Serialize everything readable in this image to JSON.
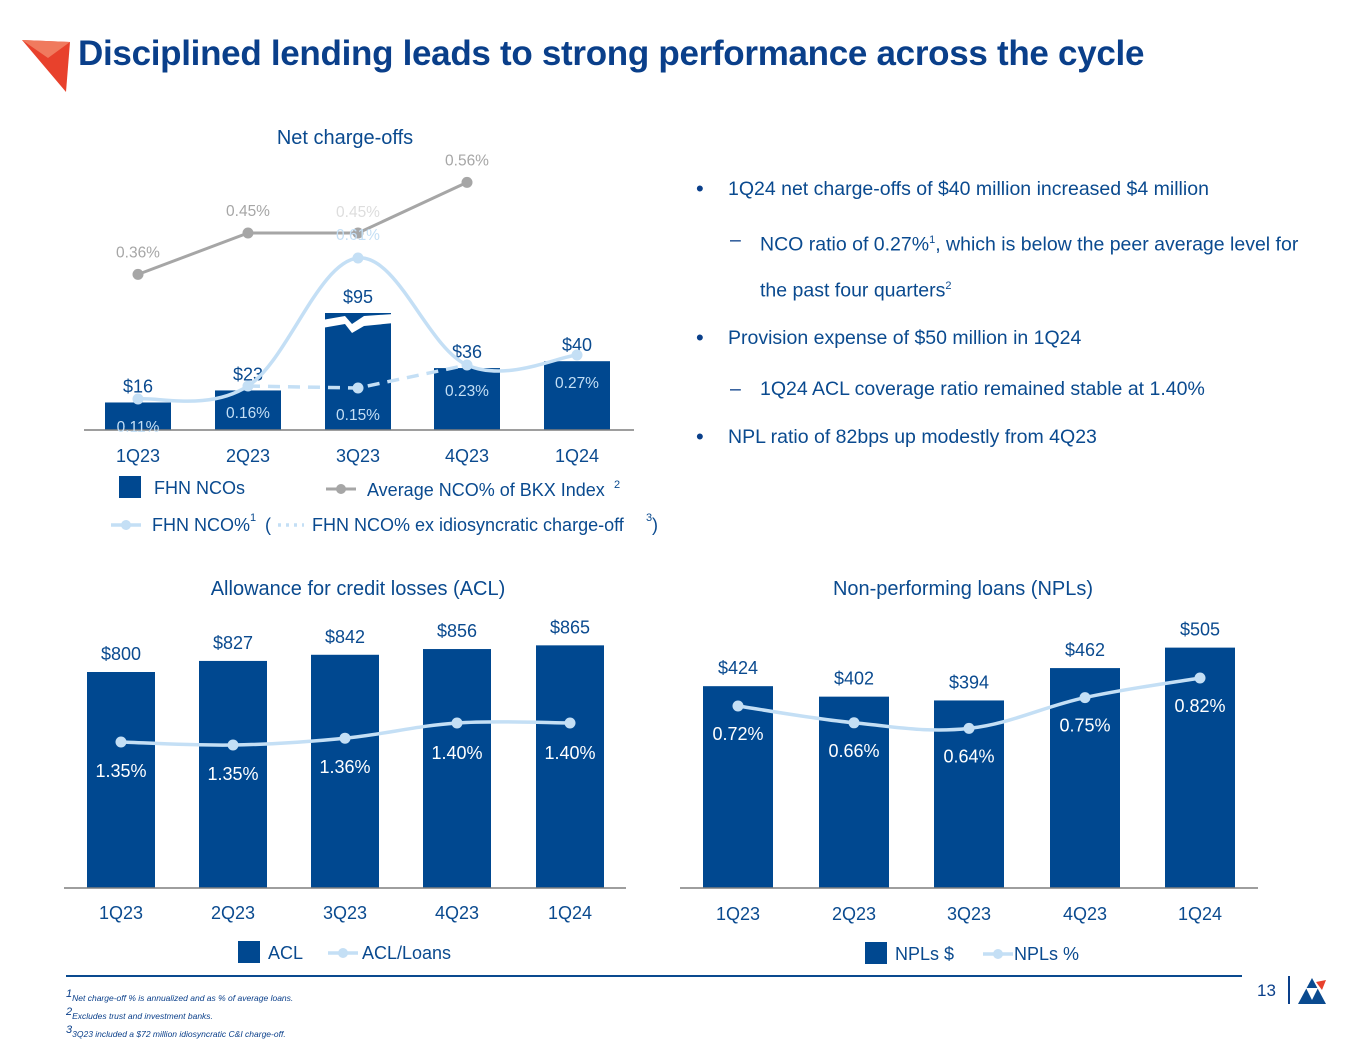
{
  "title": "Disciplined lending leads to strong performance across the cycle",
  "colors": {
    "bar": "#004890",
    "line_light": "#c4dff5",
    "line_gray": "#a6a6a6",
    "text": "#0a4a8f",
    "accent_red": "#e8412c"
  },
  "chart_data": [
    {
      "type": "bar",
      "title": "Net charge-offs",
      "categories": [
        "1Q23",
        "2Q23",
        "3Q23",
        "4Q23",
        "1Q24"
      ],
      "series": [
        {
          "name": "FHN NCOs",
          "values": [
            16,
            23,
            95,
            36,
            40
          ],
          "labels": [
            "$16",
            "$23",
            "$95",
            "$36",
            "$40"
          ]
        },
        {
          "name": "FHN NCO%",
          "values": [
            0.11,
            0.16,
            0.61,
            0.23,
            0.27
          ],
          "labels": [
            "0.11%",
            "0.16%",
            "0.61%",
            "0.23%",
            "0.27%"
          ]
        },
        {
          "name": "FHN NCO% ex idiosyncratic charge-off",
          "values": [
            null,
            0.16,
            0.15,
            0.23,
            null
          ],
          "labels": [
            "",
            "",
            "0.15%",
            "",
            ""
          ]
        },
        {
          "name": "Average NCO% of BKX Index",
          "values": [
            0.36,
            0.45,
            0.45,
            0.56,
            null
          ],
          "labels": [
            "0.36%",
            "0.45%",
            "0.45%",
            "0.56%",
            ""
          ]
        }
      ],
      "legend": {
        "ncos": "FHN NCOs",
        "bkx": "Average NCO% of BKX Index",
        "bkx_sup": "2",
        "nco_pct": "FHN NCO%",
        "nco_pct_sup": "1",
        "paren_open": "(",
        "ex": "FHN NCO% ex idiosyncratic charge-off",
        "ex_sup": "3",
        "paren_close": ")"
      }
    },
    {
      "type": "bar",
      "title": "Allowance for credit losses (ACL)",
      "categories": [
        "1Q23",
        "2Q23",
        "3Q23",
        "4Q23",
        "1Q24"
      ],
      "series": [
        {
          "name": "ACL",
          "values": [
            800,
            827,
            842,
            856,
            865
          ],
          "labels": [
            "$800",
            "$827",
            "$842",
            "$856",
            "$865"
          ]
        },
        {
          "name": "ACL/Loans",
          "values": [
            1.35,
            1.35,
            1.36,
            1.4,
            1.4
          ],
          "labels": [
            "1.35%",
            "1.35%",
            "1.36%",
            "1.40%",
            "1.40%"
          ]
        }
      ],
      "legend": [
        "ACL",
        "ACL/Loans"
      ]
    },
    {
      "type": "bar",
      "title": "Non-performing loans (NPLs)",
      "categories": [
        "1Q23",
        "2Q23",
        "3Q23",
        "4Q23",
        "1Q24"
      ],
      "series": [
        {
          "name": "NPLs $",
          "values": [
            424,
            402,
            394,
            462,
            505
          ],
          "labels": [
            "$424",
            "$402",
            "$394",
            "$462",
            "$505"
          ]
        },
        {
          "name": "NPLs %",
          "values": [
            0.72,
            0.66,
            0.64,
            0.75,
            0.82
          ],
          "labels": [
            "0.72%",
            "0.66%",
            "0.64%",
            "0.75%",
            "0.82%"
          ]
        }
      ],
      "legend": [
        "NPLs $",
        "NPLs %"
      ]
    }
  ],
  "bullets": {
    "b1": "1Q24 net charge-offs of $40 million increased $4 million",
    "b1_sub_a": "NCO ratio of 0.27%",
    "b1_sub_sup1": "1",
    "b1_sub_b": ", which is below the peer average level for the past four quarters",
    "b1_sub_sup2": "2",
    "b2": "Provision expense of $50 million in 1Q24",
    "b2_sub": "1Q24 ACL coverage ratio remained stable at 1.40%",
    "b3": "NPL ratio of 82bps up modestly from 4Q23"
  },
  "footnotes": {
    "f1_sup": "1",
    "f1": "Net charge-off % is annualized and as % of average loans.",
    "f2_sup": "2",
    "f2": "Excludes trust and investment banks.",
    "f3_sup": "3",
    "f3": "3Q23 included a $72 million idiosyncratic C&I charge-off."
  },
  "page_number": "13"
}
